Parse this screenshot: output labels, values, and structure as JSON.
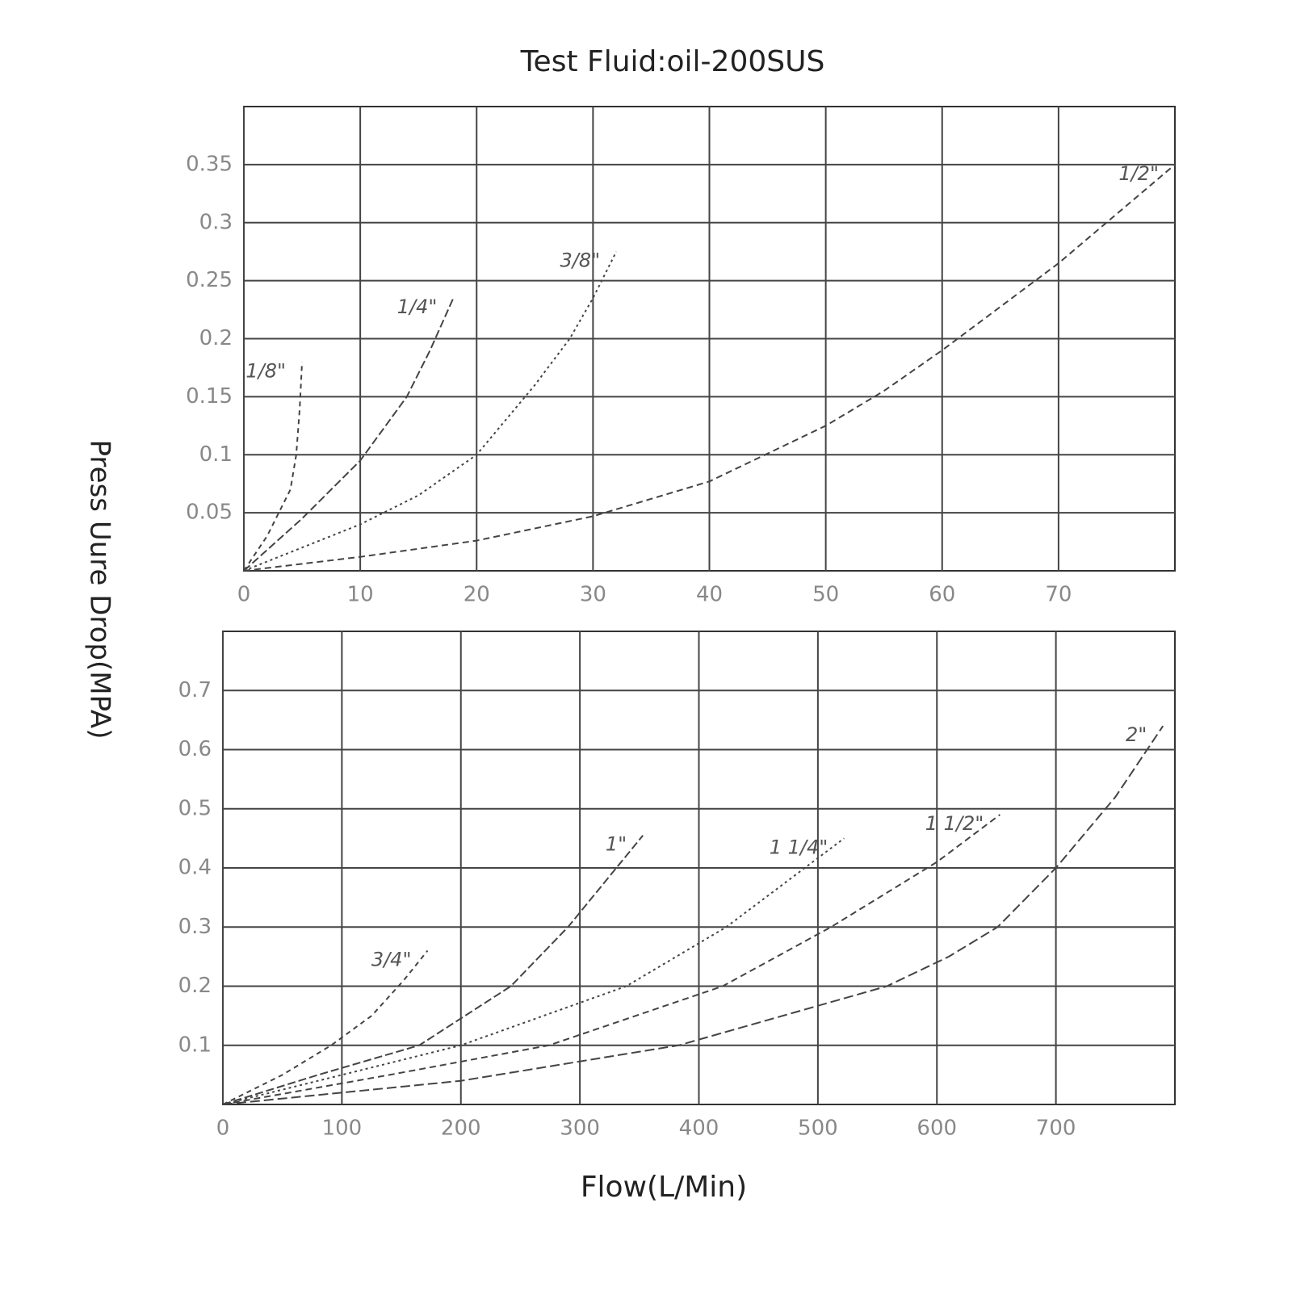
{
  "title": "Test Fluid:oil-200SUS",
  "ylabel": "Press Uure Drop(MPA)",
  "xlabel": "Flow(L/Min)",
  "chart_data": [
    {
      "type": "line",
      "xlim": [
        0,
        80
      ],
      "ylim": [
        0,
        0.4
      ],
      "xticks": [
        0,
        10,
        20,
        30,
        40,
        50,
        60,
        70
      ],
      "yticks": [
        0.05,
        0.1,
        0.15,
        0.2,
        0.25,
        0.3,
        0.35
      ],
      "grid": true,
      "series": [
        {
          "name": "1/8\"",
          "color": "#444444",
          "x": [
            0,
            2,
            4,
            4.5,
            4.8,
            5
          ],
          "values": [
            0,
            0.03,
            0.07,
            0.1,
            0.14,
            0.18
          ]
        },
        {
          "name": "1/4\"",
          "color": "#444444",
          "x": [
            0,
            5,
            10,
            14,
            16,
            18
          ],
          "values": [
            0,
            0.045,
            0.095,
            0.15,
            0.19,
            0.235
          ]
        },
        {
          "name": "3/8\"",
          "color": "#444444",
          "x": [
            0,
            10,
            15,
            20,
            25,
            28,
            30,
            32
          ],
          "values": [
            0,
            0.04,
            0.065,
            0.1,
            0.16,
            0.2,
            0.235,
            0.275
          ]
        },
        {
          "name": "1/2\"",
          "color": "#444444",
          "x": [
            0,
            10,
            20,
            30,
            40,
            50,
            55,
            60,
            70,
            80
          ],
          "values": [
            0,
            0.012,
            0.026,
            0.047,
            0.077,
            0.125,
            0.155,
            0.19,
            0.265,
            0.35
          ]
        }
      ]
    },
    {
      "type": "line",
      "xlim": [
        0,
        800
      ],
      "ylim": [
        0,
        0.8
      ],
      "xticks": [
        0,
        100,
        200,
        300,
        400,
        500,
        600,
        700
      ],
      "yticks": [
        0.1,
        0.2,
        0.3,
        0.4,
        0.5,
        0.6,
        0.7
      ],
      "grid": true,
      "series": [
        {
          "name": "3/4\"",
          "color": "#444444",
          "x": [
            0,
            50,
            91,
            125,
            152,
            172
          ],
          "values": [
            0,
            0.05,
            0.1,
            0.15,
            0.21,
            0.26
          ]
        },
        {
          "name": "1\"",
          "color": "#444444",
          "x": [
            0,
            80,
            165,
            242,
            290,
            353
          ],
          "values": [
            0,
            0.05,
            0.1,
            0.2,
            0.3,
            0.455
          ]
        },
        {
          "name": "1 1/4\"",
          "color": "#444444",
          "x": [
            0,
            100,
            200,
            339,
            423,
            522
          ],
          "values": [
            0,
            0.05,
            0.1,
            0.2,
            0.3,
            0.45
          ]
        },
        {
          "name": "1 1/2\"",
          "color": "#444444",
          "x": [
            0,
            140,
            274,
            420,
            511,
            600,
            653
          ],
          "values": [
            0,
            0.05,
            0.1,
            0.2,
            0.3,
            0.41,
            0.49
          ]
        },
        {
          "name": "2\"",
          "color": "#444444",
          "x": [
            0,
            200,
            383,
            558,
            610,
            651,
            700,
            750,
            790
          ],
          "values": [
            0,
            0.04,
            0.1,
            0.2,
            0.25,
            0.3,
            0.4,
            0.52,
            0.64
          ]
        }
      ]
    }
  ]
}
